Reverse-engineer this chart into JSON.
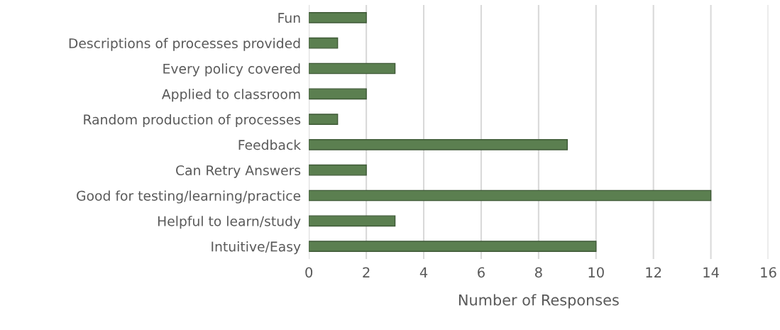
{
  "chart_data": {
    "type": "bar",
    "orientation": "horizontal",
    "xlabel": "Number of Responses",
    "categories": [
      "Fun",
      "Descriptions of processes provided",
      "Every policy covered",
      "Applied to classroom",
      "Random production of processes",
      "Feedback",
      "Can Retry Answers",
      "Good for testing/learning/practice",
      "Helpful to learn/study",
      "Intuitive/Easy"
    ],
    "values": [
      2,
      1,
      3,
      2,
      1,
      9,
      2,
      14,
      3,
      10
    ],
    "color": "#5b7f50",
    "xlim": [
      0,
      16
    ],
    "xticks": [
      0,
      2,
      4,
      6,
      8,
      10,
      12,
      14,
      16
    ],
    "grid": "x",
    "legend": false
  }
}
